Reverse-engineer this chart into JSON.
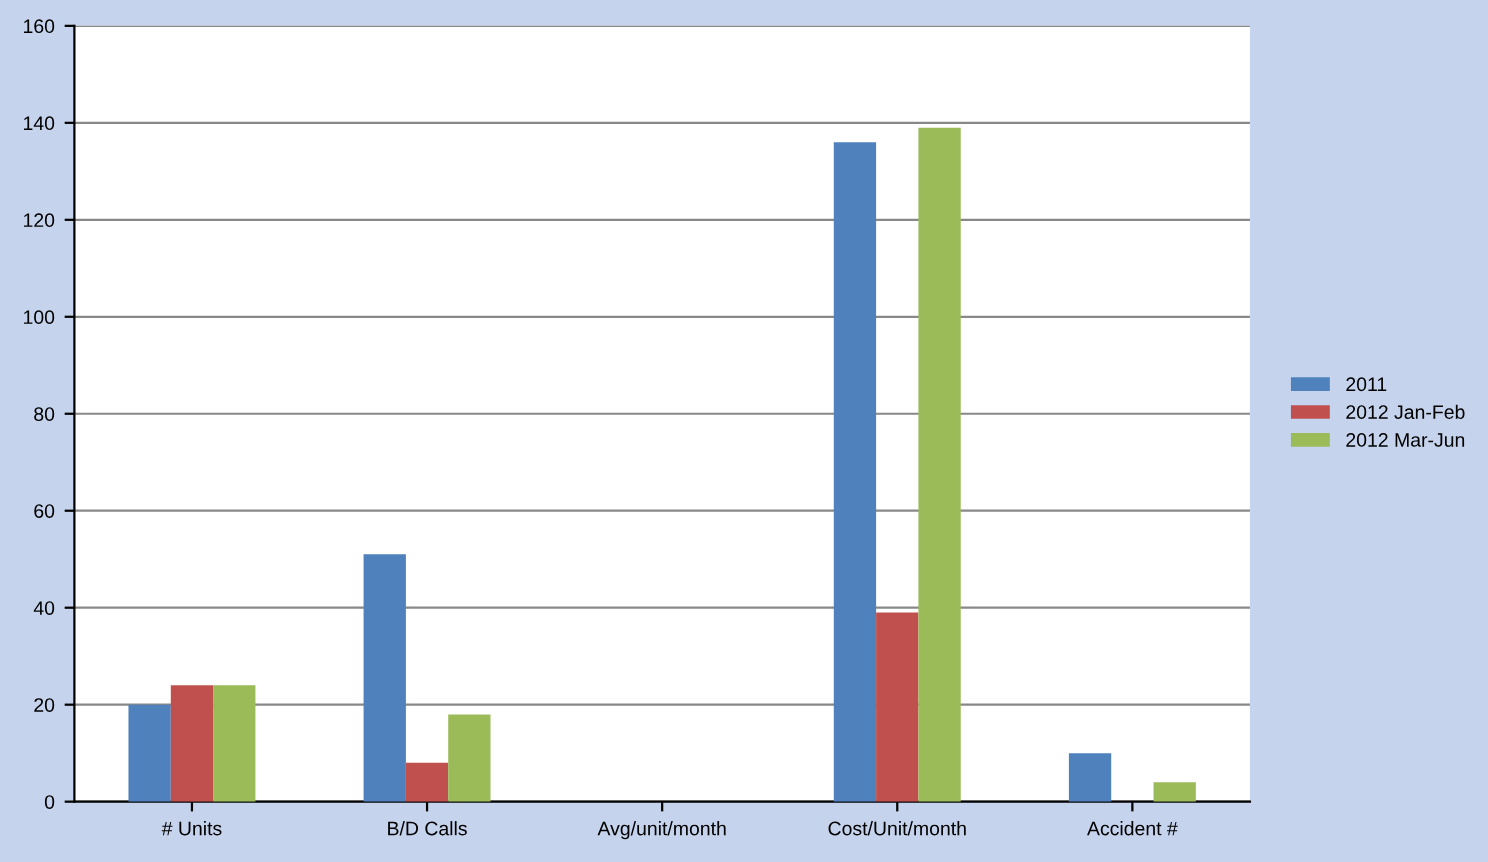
{
  "chart_data": {
    "type": "bar",
    "categories": [
      "# Units",
      "B/D Calls",
      "Avg/unit/month",
      "Cost/Unit/month",
      "Accident #"
    ],
    "series": [
      {
        "name": "2011",
        "color": "#4f81bd",
        "values": [
          20,
          51,
          0,
          136,
          10
        ]
      },
      {
        "name": "2012 Jan-Feb",
        "color": "#c0504d",
        "values": [
          24,
          8,
          0,
          39,
          0
        ]
      },
      {
        "name": "2012 Mar-Jun",
        "color": "#9bbb59",
        "values": [
          24,
          18,
          0,
          139,
          4
        ]
      }
    ],
    "ylim": [
      0,
      160
    ],
    "yticks": [
      0,
      20,
      40,
      60,
      80,
      100,
      120,
      140,
      160
    ],
    "grid": "y",
    "legend": "right"
  }
}
